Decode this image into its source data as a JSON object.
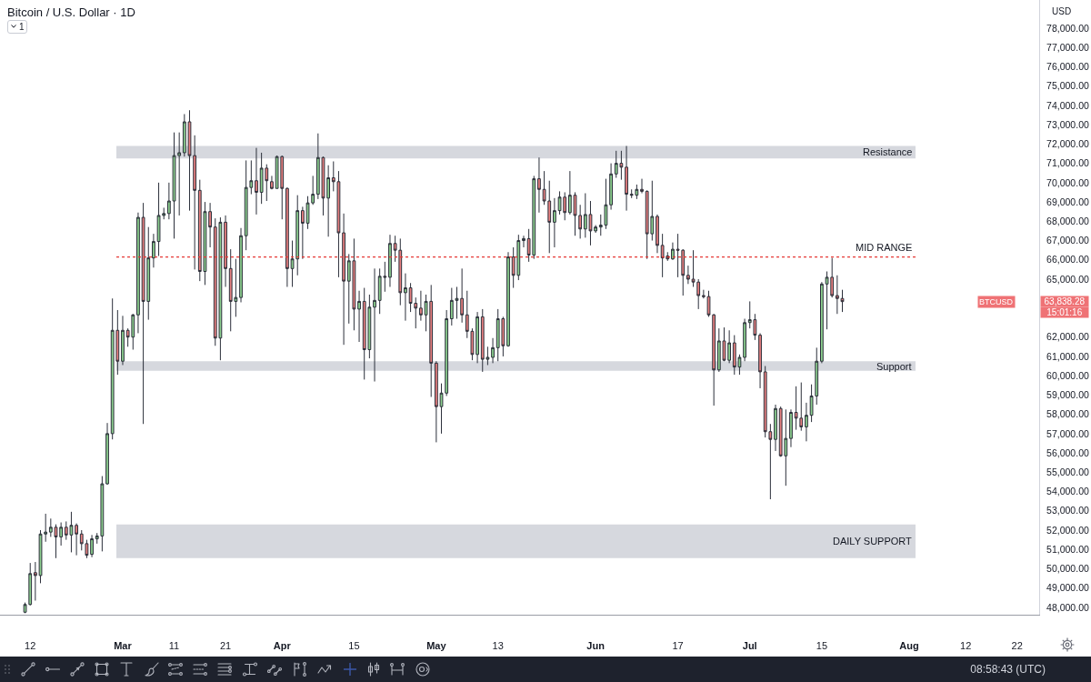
{
  "chart_data": {
    "type": "candlestick",
    "title": "Bitcoin / U.S. Dollar · 1D",
    "x": [
      "--02-11",
      "--02-12",
      "--02-13",
      "--02-14",
      "--02-15",
      "--02-16",
      "--02-17",
      "--02-18",
      "--02-19",
      "--02-20",
      "--02-21",
      "--02-22",
      "--02-23",
      "--02-24",
      "--02-25",
      "--02-26",
      "--02-27",
      "--02-28",
      "--02-29",
      "--03-01",
      "--03-02",
      "--03-03",
      "--03-04",
      "--03-05",
      "--03-06",
      "--03-07",
      "--03-08",
      "--03-09",
      "--03-10",
      "--03-11",
      "--03-12",
      "--03-13",
      "--03-14",
      "--03-15",
      "--03-16",
      "--03-17",
      "--03-18",
      "--03-19",
      "--03-20",
      "--03-21",
      "--03-22",
      "--03-23",
      "--03-24",
      "--03-25",
      "--03-26",
      "--03-27",
      "--03-28",
      "--03-29",
      "--03-30",
      "--03-31",
      "--04-01",
      "--04-02",
      "--04-03",
      "--04-04",
      "--04-05",
      "--04-06",
      "--04-07",
      "--04-08",
      "--04-09",
      "--04-10",
      "--04-11",
      "--04-12",
      "--04-13",
      "--04-14",
      "--04-15",
      "--04-16",
      "--04-17",
      "--04-18",
      "--04-19",
      "--04-20",
      "--04-21",
      "--04-22",
      "--04-23",
      "--04-24",
      "--04-25",
      "--04-26",
      "--04-27",
      "--04-28",
      "--04-29",
      "--04-30",
      "--05-01",
      "--05-02",
      "--05-03",
      "--05-04",
      "--05-05",
      "--05-06",
      "--05-07",
      "--05-08",
      "--05-09",
      "--05-10",
      "--05-11",
      "--05-12",
      "--05-13",
      "--05-14",
      "--05-15",
      "--05-16",
      "--05-17",
      "--05-18",
      "--05-19",
      "--05-20",
      "--05-21",
      "--05-22",
      "--05-23",
      "--05-24",
      "--05-25",
      "--05-26",
      "--05-27",
      "--05-28",
      "--05-29",
      "--05-30",
      "--05-31",
      "--06-01",
      "--06-02",
      "--06-03",
      "--06-04",
      "--06-05",
      "--06-06",
      "--06-07",
      "--06-08",
      "--06-09",
      "--06-10",
      "--06-11",
      "--06-12",
      "--06-13",
      "--06-14",
      "--06-15",
      "--06-16",
      "--06-17",
      "--06-18",
      "--06-19",
      "--06-20",
      "--06-21",
      "--06-22",
      "--06-23",
      "--06-24",
      "--06-25",
      "--06-26",
      "--06-27",
      "--06-28",
      "--06-29",
      "--06-30",
      "--07-01",
      "--07-02",
      "--07-03",
      "--07-04",
      "--07-05",
      "--07-06",
      "--07-07",
      "--07-08",
      "--07-09",
      "--07-10",
      "--07-11",
      "--07-12",
      "--07-13",
      "--07-14",
      "--07-15",
      "--07-16",
      "--07-17",
      "--07-18",
      "--07-19"
    ],
    "ohlc": [
      [
        47750,
        48250,
        47700,
        48150
      ],
      [
        48150,
        50300,
        48100,
        49750
      ],
      [
        49800,
        50350,
        48350,
        49650
      ],
      [
        49650,
        52000,
        49250,
        51800
      ],
      [
        51800,
        52850,
        51400,
        51900
      ],
      [
        51900,
        52600,
        51650,
        52150
      ],
      [
        52150,
        52300,
        50550,
        51650
      ],
      [
        51650,
        52400,
        51200,
        52150
      ],
      [
        52150,
        52450,
        51500,
        51750
      ],
      [
        51750,
        52950,
        50850,
        52250
      ],
      [
        52250,
        52350,
        50700,
        51800
      ],
      [
        51800,
        52000,
        50950,
        51300
      ],
      [
        51300,
        51500,
        50550,
        50700
      ],
      [
        50750,
        51750,
        50600,
        51550
      ],
      [
        51550,
        51850,
        51300,
        51700
      ],
      [
        51700,
        54800,
        50900,
        54400
      ],
      [
        54400,
        57550,
        54350,
        57000
      ],
      [
        57000,
        64000,
        56700,
        62350
      ],
      [
        62350,
        63400,
        60050,
        60750
      ],
      [
        60750,
        63100,
        60550,
        62350
      ],
      [
        62350,
        62450,
        61500,
        62000
      ],
      [
        62000,
        63200,
        61350,
        63150
      ],
      [
        63150,
        68450,
        62200,
        68200
      ],
      [
        68200,
        68950,
        57500,
        63850
      ],
      [
        63850,
        67700,
        62900,
        66100
      ],
      [
        66100,
        67350,
        65600,
        66950
      ],
      [
        66950,
        70000,
        66200,
        68300
      ],
      [
        68300,
        68700,
        68100,
        68400
      ],
      [
        68400,
        70000,
        68100,
        69050
      ],
      [
        69050,
        72600,
        67100,
        71400
      ],
      [
        71400,
        72600,
        68300,
        71550
      ],
      [
        71550,
        73550,
        71350,
        73150
      ],
      [
        73150,
        73750,
        68550,
        71400
      ],
      [
        71400,
        72450,
        65500,
        69600
      ],
      [
        69600,
        70150,
        64900,
        65400
      ],
      [
        65400,
        69000,
        64700,
        68500
      ],
      [
        68500,
        68950,
        66650,
        67700
      ],
      [
        67700,
        68150,
        61550,
        61950
      ],
      [
        61950,
        68200,
        60800,
        67950
      ],
      [
        67950,
        68300,
        64600,
        65550
      ],
      [
        65550,
        66550,
        62300,
        63850
      ],
      [
        63850,
        66050,
        63050,
        64050
      ],
      [
        64050,
        67650,
        63800,
        67250
      ],
      [
        67250,
        71150,
        66500,
        69750
      ],
      [
        69750,
        71150,
        69400,
        70100
      ],
      [
        70100,
        71800,
        68350,
        69500
      ],
      [
        69500,
        71550,
        68900,
        70750
      ],
      [
        70750,
        70950,
        69050,
        70100
      ],
      [
        70050,
        70350,
        69650,
        69700
      ],
      [
        69700,
        71400,
        69700,
        71350
      ],
      [
        71350,
        71400,
        68100,
        69700
      ],
      [
        69700,
        69750,
        64600,
        65550
      ],
      [
        65550,
        67000,
        64600,
        66050
      ],
      [
        66050,
        69350,
        65200,
        68550
      ],
      [
        68550,
        68750,
        66050,
        67900
      ],
      [
        67900,
        69300,
        67600,
        68950
      ],
      [
        68950,
        70350,
        68850,
        69400
      ],
      [
        69400,
        72550,
        69150,
        71300
      ],
      [
        71300,
        71350,
        68300,
        69200
      ],
      [
        69200,
        70900,
        67200,
        70250
      ],
      [
        70250,
        71100,
        69550,
        70050
      ],
      [
        70050,
        70600,
        65100,
        67400
      ],
      [
        67400,
        68400,
        61600,
        64900
      ],
      [
        64900,
        66300,
        62700,
        65950
      ],
      [
        65950,
        67100,
        62350,
        63450
      ],
      [
        63450,
        64400,
        61750,
        63850
      ],
      [
        63850,
        64550,
        59800,
        61350
      ],
      [
        61350,
        64200,
        60900,
        63550
      ],
      [
        63550,
        65550,
        59700,
        63900
      ],
      [
        63900,
        65550,
        63200,
        65150
      ],
      [
        65150,
        65900,
        64350,
        65100
      ],
      [
        65100,
        67300,
        64600,
        66850
      ],
      [
        66850,
        67250,
        65900,
        66500
      ],
      [
        66500,
        67100,
        63650,
        64300
      ],
      [
        64300,
        65300,
        62850,
        64550
      ],
      [
        64550,
        64800,
        63300,
        63750
      ],
      [
        63750,
        64050,
        62450,
        63500
      ],
      [
        63500,
        64400,
        62850,
        63150
      ],
      [
        63150,
        64200,
        62300,
        63850
      ],
      [
        63850,
        64700,
        58900,
        60650
      ],
      [
        60650,
        60750,
        56550,
        58400
      ],
      [
        58400,
        59600,
        57000,
        59100
      ],
      [
        59100,
        63400,
        58950,
        62950
      ],
      [
        62950,
        64550,
        62600,
        63900
      ],
      [
        63900,
        64600,
        62950,
        64000
      ],
      [
        64000,
        65550,
        62750,
        63150
      ],
      [
        63150,
        64400,
        61950,
        62300
      ],
      [
        62300,
        62450,
        60800,
        61100
      ],
      [
        61100,
        63300,
        60650,
        63050
      ],
      [
        63050,
        63450,
        60200,
        60850
      ],
      [
        60850,
        61500,
        60550,
        60950
      ],
      [
        60950,
        61950,
        60650,
        61450
      ],
      [
        61450,
        63450,
        60750,
        62950
      ],
      [
        62950,
        63050,
        61000,
        61550
      ],
      [
        61550,
        66400,
        61500,
        66150
      ],
      [
        66150,
        66650,
        64550,
        65200
      ],
      [
        65200,
        67300,
        64950,
        67000
      ],
      [
        67000,
        67250,
        66650,
        67100
      ],
      [
        67100,
        67600,
        65900,
        66250
      ],
      [
        66250,
        70350,
        66050,
        70200
      ],
      [
        70200,
        71300,
        68450,
        69650
      ],
      [
        69650,
        70600,
        68850,
        69050
      ],
      [
        69050,
        70100,
        66350,
        67950
      ],
      [
        67950,
        69200,
        66650,
        68550
      ],
      [
        68550,
        69550,
        68350,
        69250
      ],
      [
        69250,
        69500,
        68050,
        68450
      ],
      [
        68450,
        70600,
        68350,
        69350
      ],
      [
        69350,
        69500,
        67250,
        68300
      ],
      [
        68300,
        68850,
        67100,
        67600
      ],
      [
        67600,
        69450,
        67150,
        68350
      ],
      [
        68350,
        69050,
        66750,
        67500
      ],
      [
        67500,
        67800,
        67400,
        67700
      ],
      [
        67700,
        68350,
        67250,
        67800
      ],
      [
        67800,
        70200,
        67600,
        68850
      ],
      [
        68850,
        71000,
        68600,
        70450
      ],
      [
        70450,
        71650,
        70250,
        71000
      ],
      [
        71000,
        71650,
        70150,
        70800
      ],
      [
        70800,
        71900,
        68550,
        69400
      ],
      [
        69400,
        69650,
        69200,
        69350
      ],
      [
        69350,
        69900,
        69150,
        69650
      ],
      [
        69650,
        70200,
        69450,
        69550
      ],
      [
        69550,
        69600,
        66050,
        67350
      ],
      [
        67350,
        70100,
        67000,
        68250
      ],
      [
        68250,
        68350,
        66350,
        66750
      ],
      [
        66750,
        67350,
        65100,
        66100
      ],
      [
        66200,
        66400,
        65950,
        66050
      ],
      [
        66050,
        66900,
        66000,
        66550
      ],
      [
        66550,
        67350,
        65100,
        66500
      ],
      [
        66500,
        66550,
        64150,
        65200
      ],
      [
        65200,
        65700,
        64750,
        65000
      ],
      [
        65000,
        66500,
        64600,
        64850
      ],
      [
        64850,
        65000,
        63450,
        64150
      ],
      [
        64150,
        64450,
        64000,
        64100
      ],
      [
        64100,
        64400,
        63050,
        63150
      ],
      [
        63150,
        63200,
        58450,
        60300
      ],
      [
        60300,
        62450,
        60200,
        61800
      ],
      [
        61800,
        62500,
        60750,
        60800
      ],
      [
        60800,
        62350,
        60650,
        61700
      ],
      [
        61700,
        62100,
        60050,
        60450
      ],
      [
        60450,
        61100,
        60050,
        60950
      ],
      [
        60950,
        62950,
        60750,
        62750
      ],
      [
        62750,
        63850,
        62450,
        62900
      ],
      [
        62900,
        63200,
        61850,
        62100
      ],
      [
        62100,
        62200,
        59350,
        60200
      ],
      [
        60200,
        60500,
        56800,
        57100
      ],
      [
        57100,
        57500,
        53600,
        56700
      ],
      [
        56700,
        58500,
        56100,
        58300
      ],
      [
        58300,
        58400,
        55800,
        55850
      ],
      [
        55850,
        58250,
        54300,
        56750
      ],
      [
        56750,
        58250,
        56300,
        58100
      ],
      [
        58100,
        59450,
        57200,
        57800
      ],
      [
        57800,
        59650,
        57150,
        57350
      ],
      [
        57350,
        58600,
        56600,
        57950
      ],
      [
        57950,
        59550,
        57600,
        58950
      ],
      [
        58950,
        61450,
        58500,
        60750
      ],
      [
        60750,
        64850,
        60650,
        64750
      ],
      [
        64750,
        65400,
        62400,
        65100
      ],
      [
        65100,
        66100,
        64050,
        64150
      ],
      [
        64150,
        65200,
        63200,
        64000
      ],
      [
        64000,
        64450,
        63300,
        63838.28
      ]
    ],
    "xlim": [
      "--02-06T03:00",
      "--08-26T07:00"
    ],
    "xticks": [
      {
        "value": "--02-12",
        "label": "12"
      },
      {
        "value": "--03-01",
        "label": "Mar"
      },
      {
        "value": "--03-11",
        "label": "11"
      },
      {
        "value": "--03-21",
        "label": "21"
      },
      {
        "value": "--04-01",
        "label": "Apr"
      },
      {
        "value": "--04-15",
        "label": "15"
      },
      {
        "value": "--05-01",
        "label": "May"
      },
      {
        "value": "--05-13",
        "label": "13"
      },
      {
        "value": "--06-01",
        "label": "Jun"
      },
      {
        "value": "--06-17",
        "label": "17"
      },
      {
        "value": "--07-01",
        "label": "Jul"
      },
      {
        "value": "--07-15",
        "label": "15"
      },
      {
        "value": "--08-01",
        "label": "Aug"
      },
      {
        "value": "--08-12",
        "label": "12"
      },
      {
        "value": "--08-22",
        "label": "22"
      }
    ],
    "ylim": [
      47620,
      79460
    ],
    "yticks": [
      {
        "value": 48000,
        "label": "48,000.00"
      },
      {
        "value": 49000,
        "label": "49,000.00"
      },
      {
        "value": 50000,
        "label": "50,000.00"
      },
      {
        "value": 51000,
        "label": "51,000.00"
      },
      {
        "value": 52000,
        "label": "52,000.00"
      },
      {
        "value": 53000,
        "label": "53,000.00"
      },
      {
        "value": 54000,
        "label": "54,000.00"
      },
      {
        "value": 55000,
        "label": "55,000.00"
      },
      {
        "value": 56000,
        "label": "56,000.00"
      },
      {
        "value": 57000,
        "label": "57,000.00"
      },
      {
        "value": 58000,
        "label": "58,000.00"
      },
      {
        "value": 59000,
        "label": "59,000.00"
      },
      {
        "value": 60000,
        "label": "60,000.00"
      },
      {
        "value": 61000,
        "label": "61,000.00"
      },
      {
        "value": 62000,
        "label": "62,000.00"
      },
      {
        "value": 65000,
        "label": "65,000.00"
      },
      {
        "value": 66000,
        "label": "66,000.00"
      },
      {
        "value": 67000,
        "label": "67,000.00"
      },
      {
        "value": 68000,
        "label": "68,000.00"
      },
      {
        "value": 69000,
        "label": "69,000.00"
      },
      {
        "value": 70000,
        "label": "70,000.00"
      },
      {
        "value": 71000,
        "label": "71,000.00"
      },
      {
        "value": 72000,
        "label": "72,000.00"
      },
      {
        "value": 73000,
        "label": "73,000.00"
      },
      {
        "value": 74000,
        "label": "74,000.00"
      },
      {
        "value": 75000,
        "label": "75,000.00"
      },
      {
        "value": 76000,
        "label": "76,000.00"
      },
      {
        "value": 77000,
        "label": "77,000.00"
      },
      {
        "value": 78000,
        "label": "78,000.00"
      }
    ],
    "bands": [
      {
        "axis": "y",
        "from": 71250,
        "to": 71900,
        "label": "Resistance",
        "color": "#d6d8de"
      },
      {
        "axis": "y",
        "from": 60250,
        "to": 60750,
        "label": "Support",
        "color": "#d6d8de"
      },
      {
        "axis": "y",
        "from": 50550,
        "to": 52300,
        "label": "DAILY SUPPORT",
        "color": "#d6d8de"
      }
    ],
    "ref_lines": [
      {
        "axis": "y",
        "value": 66150,
        "label": "MID RANGE",
        "color": "#e53935",
        "line_style": "dotted"
      }
    ],
    "annotations": [
      "USD",
      "1",
      "BTCUSD",
      "63,838.28",
      "15:01:16",
      "08:58:43 (UTC)"
    ]
  }
}
